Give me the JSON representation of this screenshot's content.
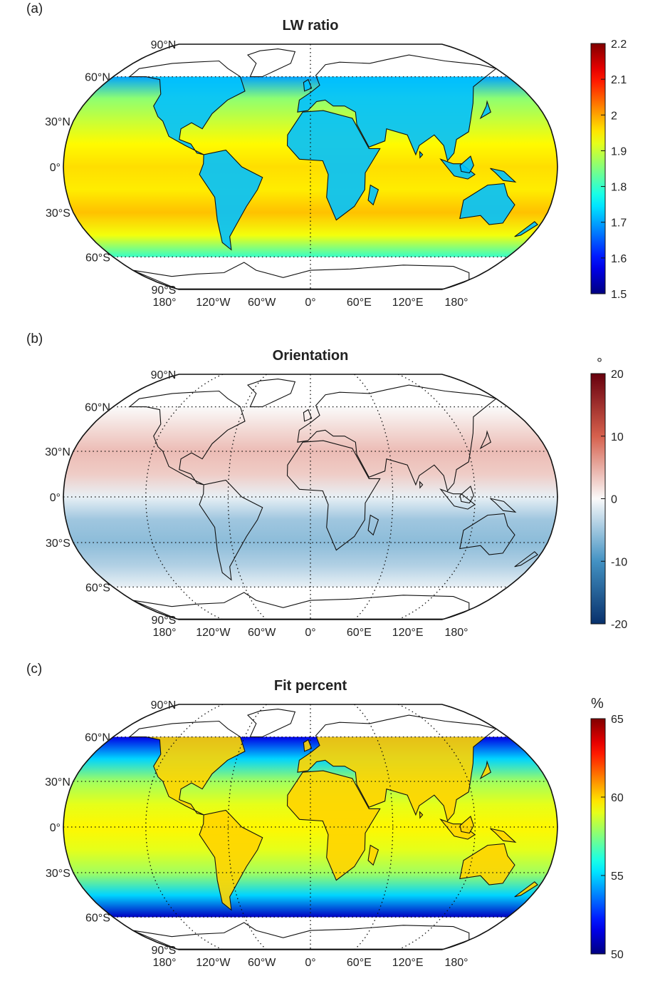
{
  "panels": [
    {
      "label": "(a)",
      "title": "LW ratio",
      "unit": "",
      "colormap": "jet",
      "lat_labels": [
        "90°N",
        "60°N",
        "30°N",
        "0°",
        "30°S",
        "60°S",
        "90°S"
      ],
      "lon_labels": [
        "180°",
        "120°W",
        "60°W",
        "0°",
        "60°E",
        "120°E",
        "180°"
      ],
      "colorbar_ticks": [
        "1.5",
        "1.6",
        "1.7",
        "1.8",
        "1.9",
        "2",
        "2.1",
        "2.2"
      ],
      "data_extent": "60°S–60°N",
      "show_grid": false
    },
    {
      "label": "(b)",
      "title": "Orientation",
      "unit": "°",
      "colormap": "diverging-blue-white-red",
      "lat_labels": [
        "90°N",
        "60°N",
        "30°N",
        "0°",
        "30°S",
        "60°S",
        "90°S"
      ],
      "lon_labels": [
        "180°",
        "120°W",
        "60°W",
        "0°",
        "60°E",
        "120°E",
        "180°"
      ],
      "colorbar_ticks": [
        "-20",
        "-10",
        "0",
        "10",
        "20"
      ],
      "data_extent": "60°S–60°N",
      "show_grid": true
    },
    {
      "label": "(c)",
      "title": "Fit percent",
      "unit": "%",
      "colormap": "jet",
      "lat_labels": [
        "90°N",
        "60°N",
        "30°N",
        "0°",
        "30°S",
        "60°S",
        "90°S"
      ],
      "lon_labels": [
        "180°",
        "120°W",
        "60°W",
        "0°",
        "60°E",
        "120°E",
        "180°"
      ],
      "colorbar_ticks": [
        "50",
        "55",
        "60",
        "65"
      ],
      "data_extent": "60°S–60°N",
      "show_grid": true
    }
  ],
  "chart_data": [
    {
      "type": "heatmap",
      "title": "LW ratio",
      "projection": "Robinson",
      "colormap": "jet",
      "clim": [
        1.5,
        2.2
      ],
      "colorbar_ticks": [
        1.5,
        1.6,
        1.7,
        1.8,
        1.9,
        2,
        2.1,
        2.2
      ],
      "zonal_profile": {
        "lat": [
          60,
          45,
          30,
          15,
          0,
          -15,
          -30,
          -45,
          -60
        ],
        "value": [
          1.7,
          1.86,
          1.9,
          1.94,
          1.96,
          1.95,
          1.98,
          1.93,
          1.8
        ]
      },
      "land_value": 1.72
    },
    {
      "type": "heatmap",
      "title": "Orientation",
      "unit": "°",
      "projection": "Robinson",
      "colormap": "diverging-blue-white-red",
      "clim": [
        -20,
        20
      ],
      "colorbar_ticks": [
        -20,
        -10,
        0,
        10,
        20
      ],
      "zonal_profile": {
        "lat": [
          60,
          45,
          30,
          15,
          0,
          -15,
          -30,
          -45,
          -60
        ],
        "value": [
          0,
          2,
          4,
          3,
          -1,
          -5,
          -6,
          -4,
          -1
        ]
      },
      "land_value": null
    },
    {
      "type": "heatmap",
      "title": "Fit percent",
      "unit": "%",
      "projection": "Robinson",
      "colormap": "jet",
      "clim": [
        50,
        65
      ],
      "colorbar_ticks": [
        50,
        55,
        60,
        65
      ],
      "zonal_profile": {
        "lat": [
          60,
          45,
          30,
          15,
          0,
          -15,
          -30,
          -45,
          -60
        ],
        "value": [
          51.5,
          55,
          58,
          59,
          59.5,
          59,
          58,
          55,
          51
        ]
      },
      "land_value": 60
    }
  ]
}
